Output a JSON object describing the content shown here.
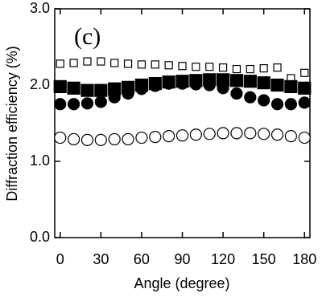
{
  "chart_data": {
    "type": "scatter",
    "annotation": "(c)",
    "x_label": "Angle (degree)",
    "y_label": "Diffraction efficiency (%)",
    "x": [
      0,
      10,
      20,
      30,
      40,
      50,
      60,
      70,
      80,
      90,
      100,
      110,
      120,
      130,
      140,
      150,
      160,
      170,
      180
    ],
    "series": [
      {
        "marker": "square-open",
        "color": "#000000",
        "values": [
          2.28,
          2.29,
          2.31,
          2.31,
          2.29,
          2.28,
          2.27,
          2.27,
          2.26,
          2.25,
          2.24,
          2.24,
          2.23,
          2.21,
          2.21,
          2.22,
          2.23,
          2.09,
          2.16
        ]
      },
      {
        "marker": "square-filled",
        "color": "#000000",
        "values": [
          1.98,
          1.96,
          1.93,
          1.93,
          1.95,
          1.97,
          2.0,
          2.02,
          2.04,
          2.05,
          2.06,
          2.07,
          2.07,
          2.06,
          2.05,
          2.03,
          2.0,
          1.98,
          1.96
        ]
      },
      {
        "marker": "circle-filled",
        "color": "#000000",
        "values": [
          1.75,
          1.75,
          1.76,
          1.78,
          1.84,
          1.89,
          1.95,
          1.99,
          2.02,
          2.02,
          2.01,
          2.0,
          1.96,
          1.89,
          1.84,
          1.8,
          1.75,
          1.75,
          1.77
        ]
      },
      {
        "marker": "circle-open",
        "color": "#000000",
        "values": [
          1.31,
          1.29,
          1.28,
          1.28,
          1.29,
          1.29,
          1.31,
          1.32,
          1.33,
          1.34,
          1.35,
          1.36,
          1.37,
          1.37,
          1.37,
          1.36,
          1.35,
          1.33,
          1.31
        ]
      }
    ],
    "xlim": [
      -4,
      184
    ],
    "xticks": [
      0,
      30,
      60,
      90,
      120,
      150,
      180
    ],
    "ylim": [
      0,
      3
    ],
    "yticks": [
      {
        "value": 0,
        "label": "0.0"
      },
      {
        "value": 1,
        "label": "1.0"
      },
      {
        "value": 2,
        "label": "2.0"
      },
      {
        "value": 3,
        "label": "3.0"
      }
    ]
  }
}
